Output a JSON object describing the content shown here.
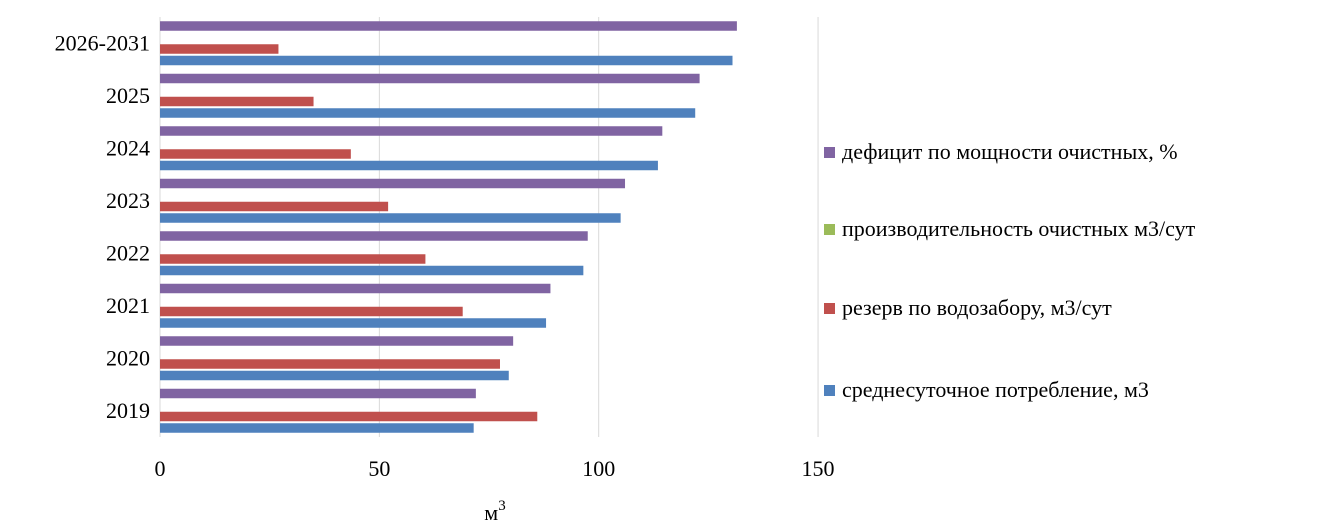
{
  "chart_data": {
    "type": "bar",
    "orientation": "horizontal",
    "categories": [
      "2019",
      "2020",
      "2021",
      "2022",
      "2023",
      "2024",
      "2025",
      "2026-2031"
    ],
    "series": [
      {
        "name": "среднесуточное потребление, м3",
        "color": "#4f81bd",
        "values": [
          71.5,
          79.5,
          88,
          96.5,
          105,
          113.5,
          122,
          130.5
        ]
      },
      {
        "name": "резерв по водозабору, м3/сут",
        "color": "#c0504d",
        "values": [
          86,
          77.5,
          69,
          60.5,
          52,
          43.5,
          35,
          27
        ]
      },
      {
        "name": "производительность очистных  м3/сут",
        "color": "#9bbb59",
        "values": [
          0,
          0,
          0,
          0,
          0,
          0,
          0,
          0
        ]
      },
      {
        "name": "дефицит по мощности очистных, %",
        "color": "#8064a2",
        "values": [
          72,
          80.5,
          89,
          97.5,
          106,
          114.5,
          123,
          131.5
        ]
      }
    ],
    "xlim": [
      0,
      150
    ],
    "xticks": [
      "0",
      "50",
      "100",
      "150"
    ],
    "xlabel": "м",
    "xlabel_sup": "3",
    "legend_position": "right",
    "grid": "vertical"
  }
}
